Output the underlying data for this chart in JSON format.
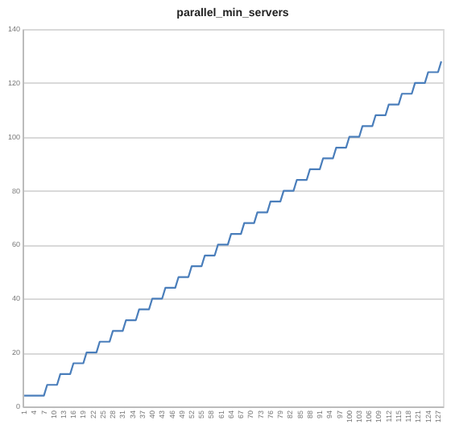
{
  "chart_data": {
    "type": "line",
    "title": "parallel_min_servers",
    "categories": [
      "1",
      null,
      null,
      "4",
      null,
      null,
      "7",
      null,
      null,
      "10",
      null,
      null,
      "13",
      null,
      null,
      "16",
      null,
      null,
      "19",
      null,
      null,
      "22",
      null,
      null,
      "25",
      null,
      null,
      "28",
      null,
      null,
      "31",
      null,
      null,
      "34",
      null,
      null,
      "37",
      null,
      null,
      "40",
      null,
      null,
      "43",
      null,
      null,
      "46",
      null,
      null,
      "49",
      null,
      null,
      "52",
      null,
      null,
      "55",
      null,
      null,
      "58",
      null,
      null,
      "61",
      null,
      null,
      "64",
      null,
      null,
      "67",
      null,
      null,
      "70",
      null,
      null,
      "73",
      null,
      null,
      "76",
      null,
      null,
      "79",
      null,
      null,
      "82",
      null,
      null,
      "85",
      null,
      null,
      "88",
      null,
      null,
      "91",
      null,
      null,
      "94",
      null,
      null,
      "97",
      null,
      null,
      "100",
      null,
      null,
      "103",
      null,
      null,
      "106",
      null,
      null,
      "109",
      null,
      null,
      "112",
      null,
      null,
      "115",
      null,
      null,
      "118",
      null,
      null,
      "121",
      null,
      null,
      "124",
      null,
      null,
      "127",
      null
    ],
    "series": [
      {
        "color": "#4a7ebb",
        "values": [
          4,
          4,
          4,
          4,
          4,
          4,
          4,
          8,
          8,
          8,
          8,
          12,
          12,
          12,
          12,
          16,
          16,
          16,
          16,
          20,
          20,
          20,
          20,
          24,
          24,
          24,
          24,
          28,
          28,
          28,
          28,
          32,
          32,
          32,
          32,
          36,
          36,
          36,
          36,
          40,
          40,
          40,
          40,
          44,
          44,
          44,
          44,
          48,
          48,
          48,
          48,
          52,
          52,
          52,
          52,
          56,
          56,
          56,
          56,
          60,
          60,
          60,
          60,
          64,
          64,
          64,
          64,
          68,
          68,
          68,
          68,
          72,
          72,
          72,
          72,
          76,
          76,
          76,
          76,
          80,
          80,
          80,
          80,
          84,
          84,
          84,
          84,
          88,
          88,
          88,
          88,
          92,
          92,
          92,
          92,
          96,
          96,
          96,
          96,
          100,
          100,
          100,
          100,
          104,
          104,
          104,
          104,
          108,
          108,
          108,
          108,
          112,
          112,
          112,
          112,
          116,
          116,
          116,
          116,
          120,
          120,
          120,
          120,
          124,
          124,
          124,
          124,
          128
        ]
      }
    ],
    "ylim": [
      0,
      140
    ],
    "yticks": [
      0,
      20,
      40,
      60,
      80,
      100,
      120,
      140
    ],
    "grid": "y",
    "marker": "none",
    "line_style": "solid"
  }
}
